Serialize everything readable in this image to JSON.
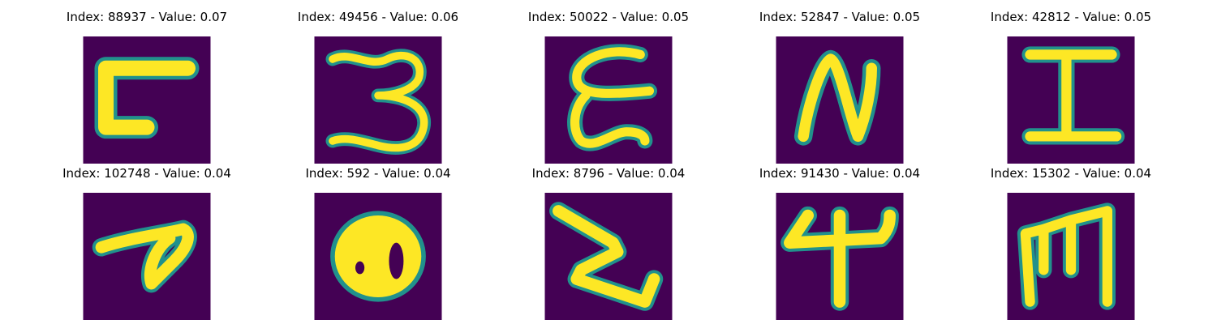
{
  "panels": [
    {
      "title": "Index: 88937 - Value: 0.07",
      "glyph": "seven-like"
    },
    {
      "title": "Index: 49456 - Value: 0.06",
      "glyph": "three"
    },
    {
      "title": "Index: 50022 - Value: 0.05",
      "glyph": "e-like"
    },
    {
      "title": "Index: 52847 - Value: 0.05",
      "glyph": "n"
    },
    {
      "title": "Index: 42812 - Value: 0.05",
      "glyph": "i"
    },
    {
      "title": "Index: 102748 - Value: 0.04",
      "glyph": "p-like"
    },
    {
      "title": "Index: 592 - Value: 0.04",
      "glyph": "eight"
    },
    {
      "title": "Index: 8796 - Value: 0.04",
      "glyph": "z-like"
    },
    {
      "title": "Index: 91430 - Value: 0.04",
      "glyph": "four"
    },
    {
      "title": "Index: 15302 - Value: 0.04",
      "glyph": "m"
    }
  ],
  "colors": {
    "background": "#440154",
    "stroke": "#fde725",
    "edge": "#21918c"
  }
}
